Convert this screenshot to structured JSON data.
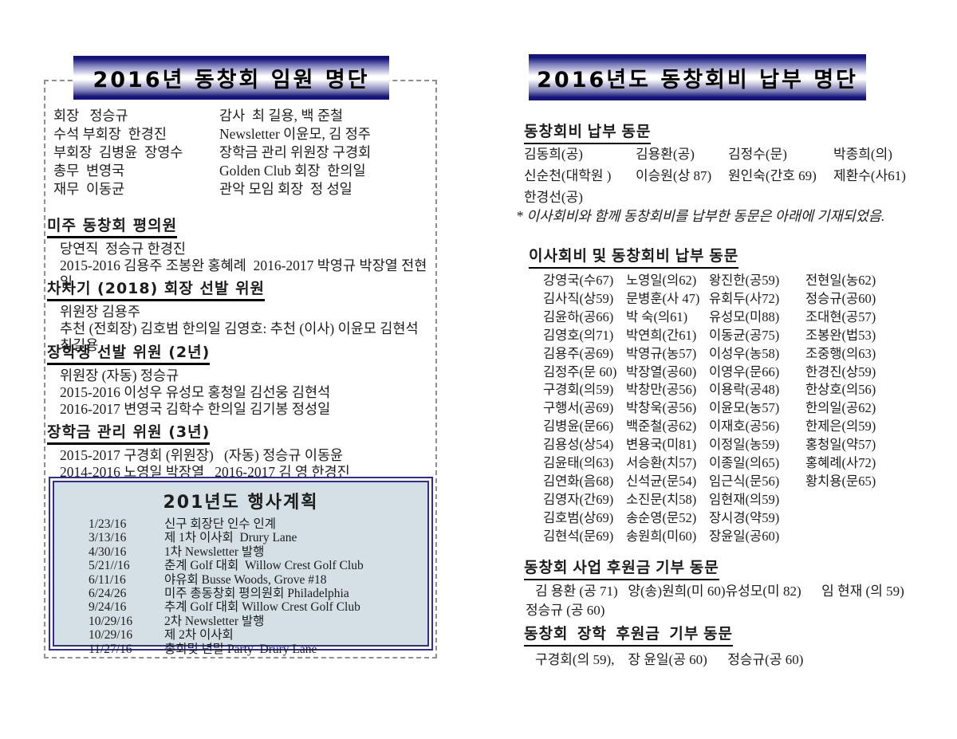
{
  "left": {
    "banner": "2016년 동창회 임원 명단",
    "officers": [
      [
        "회장   정승규",
        "감사  최 길용, 백 준철"
      ],
      [
        "수석 부회장  한경진",
        "Newsletter 이윤모, 김 정주"
      ],
      [
        "부회장  김병윤  장영수",
        "장학금 관리 위원장 구경회"
      ],
      [
        "총무  변영국",
        "Golden Club 회장  한의일"
      ],
      [
        "재무  이동균",
        "관악 모임 회장  정 성일"
      ]
    ],
    "sections": [
      {
        "title": "미주 동창회 평의원",
        "lines": [
          "당연직  정승규 한경진",
          "2015-2016 김용주 조봉완 홍혜례  2016-2017 박영규 박장열 전현일"
        ]
      },
      {
        "title": "차차기 (2018) 회장 선발 위원",
        "lines": [
          "위원장 김용주",
          "추천 (전회장) 김호범 한의일 김영호: 추천 (이사) 이윤모 김현석  최길용"
        ]
      },
      {
        "title": "장학생 선발 위원 (2년)",
        "lines": [
          "위원장 (자동) 정승규",
          "2015-2016 이성우 유성모 홍청일 김선웅 김현석",
          "2016-2017 변영국 김학수 한의일 김기봉 정성일"
        ]
      },
      {
        "title": "장학금 관리 위원 (3년)",
        "lines": [
          "2015-2017 구경회 (위원장)   (자동) 정승규 이동윤",
          "2014-2016 노영일 박장열   2016-2017 김 영 한경진"
        ]
      }
    ],
    "events": {
      "title": "201년도 행사계획",
      "rows": [
        [
          "1/23/16",
          "신구 회장단 인수 인계"
        ],
        [
          "3/13/16",
          "제 1차 이사회  Drury Lane"
        ],
        [
          "4/30/16",
          "1차 Newsletter 발행"
        ],
        [
          "5/21//16",
          "춘계 Golf 대회  Willow Crest Golf Club"
        ],
        [
          "6/11/16",
          "야유회 Busse Woods, Grove #18"
        ],
        [
          "6/24/26",
          "미주 총동창회 평의원회 Philadelphia"
        ],
        [
          "9/24/16",
          "추계 Golf 대회 Willow Crest Golf Club"
        ],
        [
          "10/29/16",
          "2차 Newsletter 발행"
        ],
        [
          "10/29/16",
          "제 2차 이사회"
        ],
        [
          "11/27/16",
          "총회및 년말 Party  Drury Lane"
        ]
      ]
    }
  },
  "right": {
    "banner": "2016년도 동창회비 납부 명단",
    "dues_section": {
      "title": "동창회비 납부 동문",
      "rows": [
        [
          "김동희(공)",
          "김용환(공)",
          "김정수(문)",
          "박종희(의)"
        ],
        [
          "신순천(대학원 )",
          "이승원(상 87)",
          "원인숙(간호 69)",
          "제환수(사61)"
        ],
        [
          "한경선(공)",
          "",
          "",
          ""
        ]
      ]
    },
    "note": "* 이사회비와 함께 동창회비를 납부한 동문은 아래에 기재되었음.",
    "board_section": {
      "title": "이사회비 및 동창회비 납부 동문",
      "rows": [
        [
          "강영국(수67)",
          "노영일(의62)",
          "왕진한(공59)",
          "전현일(농62)"
        ],
        [
          "김사직(상59)",
          "문병훈(사 47)",
          "유회두(사72)",
          "정승규(공60)"
        ],
        [
          "김윤하(공66)",
          "박 숙(의61)",
          "유성모(미88)",
          "조대현(공57)"
        ],
        [
          "김영호(의71)",
          "박연희(간61)",
          "이동균(공75)",
          "조봉완(법53)"
        ],
        [
          "김용주(공69)",
          "박영규(농57)",
          "이성우(농58)",
          "조중행(의63)"
        ],
        [
          "김정주(문 60)",
          "박장열(공60)",
          "이영우(문66)",
          "한경진(상59)"
        ],
        [
          "구경회(의59)",
          "박창만(공56)",
          "이용락(공48)",
          "한상호(의56)"
        ],
        [
          "구행서(공69)",
          "박창욱(공56)",
          "이윤모(농57)",
          "한의일(공62)"
        ],
        [
          "김병윤(문66)",
          "백준철(공62)",
          "이재호(공56)",
          "한제은(의59)"
        ],
        [
          "김용성(상54)",
          "변용국(미81)",
          "이정일(농59)",
          "홍청일(약57)"
        ],
        [
          "김윤태(의63)",
          "서승환(치57)",
          "이종일(의65)",
          "홍혜례(사72)"
        ],
        [
          "김연화(음68)",
          "신석균(문54)",
          "임근식(문56)",
          "황치용(문65)"
        ],
        [
          "김영자(간69)",
          "소진문(치58)",
          "임현재(의59)",
          ""
        ],
        [
          "김호범(상69)",
          "송순영(문52)",
          "장시경(약59)",
          ""
        ],
        [
          "김현석(문69)",
          "송원희(미60)",
          "장윤일(공60)",
          ""
        ]
      ]
    },
    "business_section": {
      "title": "동창회 사업 후원금 기부 동문",
      "lines": [
        "김 용환 (공 71)   양(송)원희(미 60)유성모(미 82)      임 현재 (의 59)",
        "정승규 (공 60)"
      ]
    },
    "scholarship_section": {
      "title": "동창회  장학  후원금  기부 동문",
      "lines": [
        "구경회(의 59),    장 윤일(공 60)      정승규(공 60)"
      ]
    }
  },
  "colors": {
    "banner_navy": "#14147a",
    "box_border_navy": "#2e2e99",
    "events_background": "#d5e0e6",
    "dashed_border": "#8f8f8f",
    "text": "#1c1c1c"
  }
}
